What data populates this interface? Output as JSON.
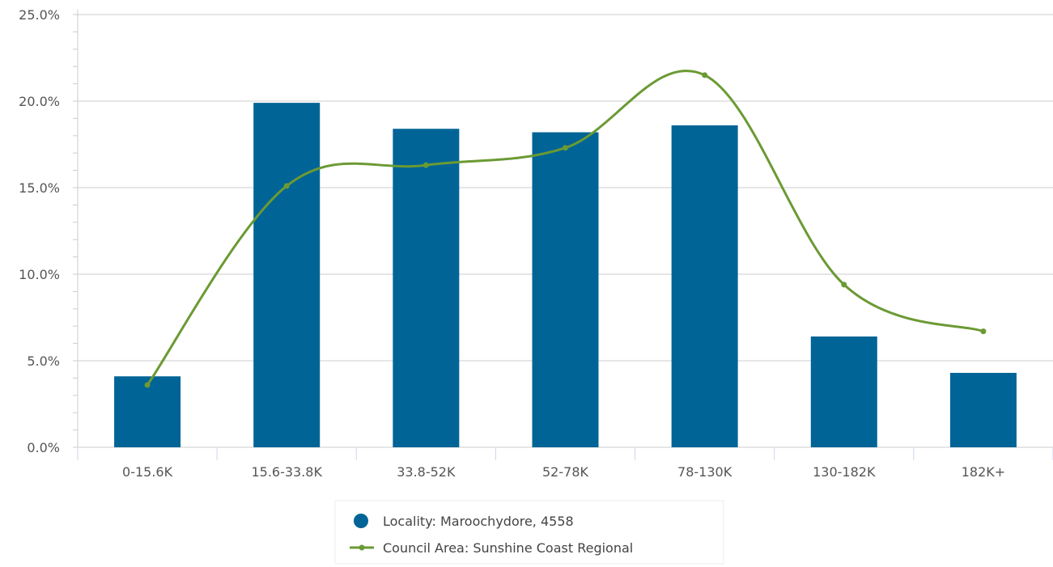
{
  "chart_data": {
    "type": "bar",
    "categories": [
      "0-15.6K",
      "15.6-33.8K",
      "33.8-52K",
      "52-78K",
      "78-130K",
      "130-182K",
      "182K+"
    ],
    "y_tick_labels": [
      "0.0%",
      "5.0%",
      "10.0%",
      "15.0%",
      "20.0%",
      "25.0%"
    ],
    "ylim": [
      0,
      25
    ],
    "grid": true,
    "legend_position": "bottom-center",
    "series": [
      {
        "name": "Locality: Maroochydore, 4558",
        "type": "bar",
        "color": "#006496",
        "values": [
          4.1,
          19.9,
          18.4,
          18.2,
          18.6,
          6.4,
          4.3
        ]
      },
      {
        "name": "Council Area: Sunshine Coast Regional",
        "type": "line",
        "smooth": true,
        "color": "#6b9a34",
        "values": [
          3.6,
          15.1,
          16.3,
          17.3,
          21.5,
          9.4,
          6.7
        ]
      }
    ]
  }
}
